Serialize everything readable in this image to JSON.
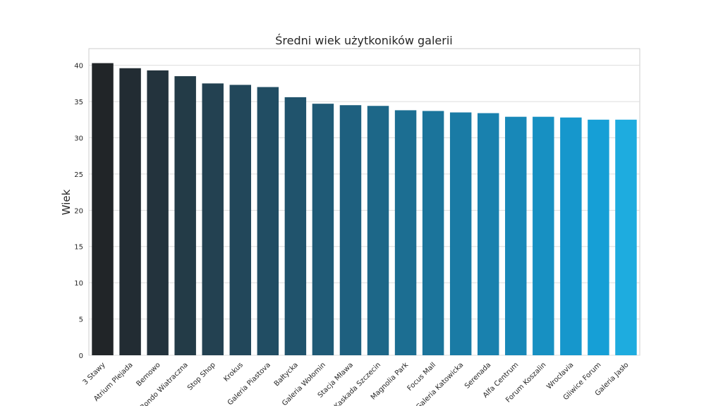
{
  "chart_data": {
    "type": "bar",
    "title": "Średni wiek użytkoników galerii",
    "xlabel": "",
    "ylabel": "Wiek",
    "ylim": [
      0,
      42.3
    ],
    "yticks": [
      0,
      5,
      10,
      15,
      20,
      25,
      30,
      35,
      40
    ],
    "grid": "horizontal",
    "categories": [
      "3 Stawy",
      "Atrium Plejada",
      "Bemowo",
      "Rondo Wiatraczna",
      "Stop Shop",
      "Krokus",
      "Galeria Piastova",
      "Bałtycka",
      "Galeria Wołomin",
      "Stacja Mława",
      "Kaskada Szczecin",
      "Magnolia Park",
      "Focus Mall",
      "Galeria Katowicka",
      "Serenada",
      "Alfa Centrum",
      "Forum Koszalin",
      "Wrocłavia",
      "Gliwice Forum",
      "Galeria Jasło"
    ],
    "values": [
      40.3,
      39.6,
      39.3,
      38.5,
      37.5,
      37.3,
      37.0,
      35.6,
      34.7,
      34.5,
      34.4,
      33.8,
      33.7,
      33.5,
      33.4,
      32.9,
      32.9,
      32.8,
      32.5,
      32.5
    ],
    "colors": [
      "#212528",
      "#222c33",
      "#23333d",
      "#233b47",
      "#234151",
      "#22475a",
      "#214d63",
      "#20536c",
      "#1f5a76",
      "#1e607f",
      "#1d6788",
      "#1c6e92",
      "#1b749b",
      "#1a7ba5",
      "#1981ae",
      "#1888b8",
      "#1790c2",
      "#1697cc",
      "#169fd6",
      "#1eacdf"
    ]
  }
}
